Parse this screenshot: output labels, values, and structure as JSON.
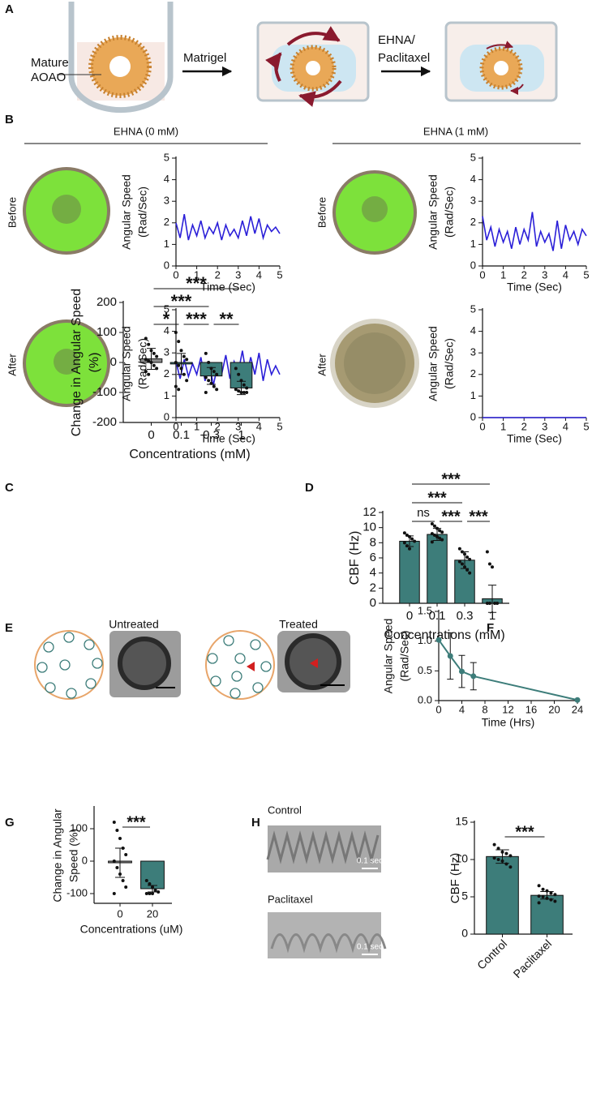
{
  "panel_labels": [
    "A",
    "B",
    "C",
    "D",
    "E",
    "F",
    "G",
    "H"
  ],
  "panel_a": {
    "organoid_label": [
      "Mature",
      "AOAO"
    ],
    "step1": "Matrigel",
    "step2": [
      "EHNA/",
      "Paclitaxel"
    ]
  },
  "panel_b": {
    "headers": [
      "EHNA (0 mM)",
      "EHNA (1 mM)"
    ],
    "row_labels": [
      "Before",
      "After",
      "Before",
      "After"
    ]
  },
  "panel_e": {
    "labels": [
      "Untreated",
      "Treated"
    ]
  },
  "panel_h": {
    "labels": [
      "Control",
      "Paclitaxel"
    ],
    "scale_bars": [
      "0.1 sec",
      "0.1 sec"
    ]
  },
  "chart_data": [
    {
      "type": "line",
      "x": [
        0,
        0.2,
        0.4,
        0.6,
        0.8,
        1,
        1.2,
        1.4,
        1.6,
        1.8,
        2,
        2.2,
        2.4,
        2.6,
        2.8,
        3,
        3.2,
        3.4,
        3.6,
        3.8,
        4,
        4.2,
        4.4,
        4.6,
        4.8,
        5
      ],
      "values": [
        2.0,
        1.3,
        2.4,
        1.2,
        1.9,
        1.4,
        2.1,
        1.3,
        1.8,
        1.5,
        2.0,
        1.2,
        1.9,
        1.4,
        1.7,
        1.3,
        2.1,
        1.4,
        2.3,
        1.5,
        2.2,
        1.3,
        1.9,
        1.6,
        1.8,
        1.5
      ],
      "color": "#2b1fd8",
      "xlim": [
        0,
        5
      ],
      "ylim": [
        0,
        5
      ],
      "xticks": [
        0,
        1,
        2,
        3,
        4,
        5
      ],
      "yticks": [
        0,
        1,
        2,
        3,
        4,
        5
      ],
      "x_label": "Time (Sec)",
      "y_label": [
        "Angular Speed",
        "(Rad/Sec)"
      ]
    },
    {
      "type": "line",
      "x": [
        0,
        0.2,
        0.4,
        0.6,
        0.8,
        1,
        1.2,
        1.4,
        1.6,
        1.8,
        2,
        2.2,
        2.4,
        2.6,
        2.8,
        3,
        3.2,
        3.4,
        3.6,
        3.8,
        4,
        4.2,
        4.4,
        4.6,
        4.8,
        5
      ],
      "values": [
        2.6,
        1.8,
        2.7,
        1.9,
        2.5,
        2.0,
        2.8,
        1.7,
        2.6,
        1.5,
        2.4,
        2.0,
        2.9,
        1.8,
        2.6,
        2.1,
        3.1,
        1.9,
        2.8,
        2.0,
        3.0,
        1.7,
        2.7,
        2.0,
        2.4,
        2.0
      ],
      "color": "#2b1fd8",
      "xlim": [
        0,
        5
      ],
      "ylim": [
        0,
        5
      ],
      "xticks": [
        0,
        1,
        2,
        3,
        4,
        5
      ],
      "yticks": [
        0,
        1,
        2,
        3,
        4,
        5
      ],
      "x_label": "Time (Sec)",
      "y_label": [
        "Angular Speed",
        "(Rad/Sec)"
      ]
    },
    {
      "type": "line",
      "x": [
        0,
        0.2,
        0.4,
        0.6,
        0.8,
        1,
        1.2,
        1.4,
        1.6,
        1.8,
        2,
        2.2,
        2.4,
        2.6,
        2.8,
        3,
        3.2,
        3.4,
        3.6,
        3.8,
        4,
        4.2,
        4.4,
        4.6,
        4.8,
        5
      ],
      "values": [
        2.3,
        1.2,
        1.8,
        0.9,
        1.7,
        1.1,
        1.6,
        0.8,
        1.8,
        1.0,
        1.7,
        1.2,
        2.5,
        0.9,
        1.6,
        1.1,
        1.5,
        0.7,
        2.1,
        0.8,
        1.9,
        1.2,
        1.6,
        1.0,
        1.7,
        1.4
      ],
      "color": "#2b1fd8",
      "xlim": [
        0,
        5
      ],
      "ylim": [
        0,
        5
      ],
      "xticks": [
        0,
        1,
        2,
        3,
        4,
        5
      ],
      "yticks": [
        0,
        1,
        2,
        3,
        4,
        5
      ],
      "x_label": "Time (Sec)",
      "y_label": [
        "Angular Speed",
        "(Rad/Sec)"
      ]
    },
    {
      "type": "line",
      "x": [
        0,
        1,
        2,
        3,
        4,
        5
      ],
      "values": [
        0,
        0,
        0,
        0,
        0,
        0
      ],
      "color": "#2b1fd8",
      "xlim": [
        0,
        5
      ],
      "ylim": [
        0,
        5
      ],
      "xticks": [
        0,
        1,
        2,
        3,
        4,
        5
      ],
      "yticks": [
        0,
        1,
        2,
        3,
        4,
        5
      ],
      "x_label": "Time (Sec)",
      "y_label": [
        "Angular Speed",
        "(Rad/Sec)"
      ]
    },
    {
      "type": "bar",
      "categories": [
        "0",
        "0.1",
        "0.3",
        "1"
      ],
      "values": [
        12,
        -5,
        -45,
        -85
      ],
      "errors": [
        35,
        35,
        28,
        22
      ],
      "colors": [
        "#8c8c8c",
        "#3d7d7a",
        "#3d7d7a",
        "#3d7d7a"
      ],
      "points": [
        [
          80,
          60,
          40,
          30,
          20,
          10,
          5,
          0,
          -10,
          -20,
          -30,
          -40
        ],
        [
          100,
          70,
          40,
          20,
          10,
          0,
          -10,
          -20,
          -40,
          -60,
          -80,
          -90
        ],
        [
          30,
          0,
          -20,
          -30,
          -40,
          -50,
          -60,
          -70,
          -80,
          -90,
          -100
        ],
        [
          -20,
          -40,
          -60,
          -75,
          -85,
          -90,
          -95,
          -100,
          -100,
          -100
        ]
      ],
      "ylim": [
        -200,
        200
      ],
      "yticks": [
        -200,
        -100,
        0,
        100,
        200
      ],
      "x_label": "Concentrations (mM)",
      "y_label": [
        "Change in Angular Speed",
        "(%)"
      ],
      "brackets": [
        {
          "from": 0,
          "to": 1,
          "label": "*"
        },
        {
          "from": 1,
          "to": 2,
          "label": "***"
        },
        {
          "from": 2,
          "to": 3,
          "label": "**"
        },
        {
          "from": 0,
          "to": 2,
          "label": "***"
        },
        {
          "from": 0,
          "to": 3,
          "label": "***"
        }
      ]
    },
    {
      "type": "bar",
      "categories": [
        "0",
        "0.1",
        "0.3",
        "1"
      ],
      "values": [
        8.2,
        9.1,
        5.7,
        0.6
      ],
      "errors": [
        0.7,
        0.8,
        1.1,
        1.8
      ],
      "colors": [
        "#3d7d7a",
        "#3d7d7a",
        "#3d7d7a",
        "#3d7d7a"
      ],
      "points": [
        [
          9.3,
          9,
          8.8,
          8.5,
          8.2,
          8,
          7.6,
          7.2
        ],
        [
          10.5,
          10.2,
          9.9,
          9.6,
          9.4,
          9.2,
          9,
          8.8,
          8.6,
          8.4,
          8.1
        ],
        [
          7.2,
          6.8,
          6.5,
          6.1,
          5.8,
          5.5,
          5.2,
          4.8,
          4.4,
          4.0
        ],
        [
          6.8,
          5.2,
          4.8,
          0,
          0,
          0,
          0
        ]
      ],
      "ylim": [
        0,
        12
      ],
      "yticks": [
        0,
        2,
        4,
        6,
        8,
        10,
        12
      ],
      "x_label": "Concentrations (mM)",
      "y_label": [
        "CBF (Hz)"
      ],
      "brackets": [
        {
          "from": 0,
          "to": 1,
          "label": "ns"
        },
        {
          "from": 1,
          "to": 2,
          "label": "***"
        },
        {
          "from": 2,
          "to": 3,
          "label": "***"
        },
        {
          "from": 0,
          "to": 2,
          "label": "***"
        },
        {
          "from": 0,
          "to": 3,
          "label": "***"
        }
      ]
    },
    {
      "type": "line",
      "x": [
        0,
        2,
        4,
        6,
        24
      ],
      "values": [
        1.02,
        0.75,
        0.49,
        0.41,
        0.01
      ],
      "errors": [
        null,
        0.39,
        0.27,
        0.23,
        null
      ],
      "color": "#3d7d7a",
      "xlim": [
        0,
        24
      ],
      "ylim": [
        0,
        1.5
      ],
      "xticks": [
        0,
        4,
        8,
        12,
        16,
        20,
        24
      ],
      "yticks": [
        {
          "value": 0,
          "label": "0.0"
        },
        {
          "value": 0.5,
          "label": "0.5"
        },
        {
          "value": 1,
          "label": "1.0"
        },
        {
          "value": 1.5,
          "label": "1.5"
        }
      ],
      "x_label": "Time (Hrs)",
      "y_label": [
        "Angular Speed",
        "(Rad/Sec)"
      ],
      "markers": true
    },
    {
      "type": "bar",
      "categories": [
        "0",
        "20"
      ],
      "values": [
        -5,
        -85
      ],
      "errors": [
        45,
        10
      ],
      "colors": [
        "#8c8c8c",
        "#3d7d7a"
      ],
      "points": [
        [
          120,
          95,
          70,
          40,
          20,
          0,
          -20,
          -40,
          -60,
          -80,
          -100
        ],
        [
          -60,
          -70,
          -80,
          -90,
          -95,
          -100,
          -100,
          -100
        ]
      ],
      "ylim": [
        -130,
        165
      ],
      "yticks": [
        -100,
        0,
        100
      ],
      "x_label": "Concentrations (uM)",
      "y_label": [
        "Change in Angular",
        "Speed (%)"
      ],
      "brackets": [
        {
          "from": 0,
          "to": 1,
          "label": "***"
        }
      ]
    },
    {
      "type": "bar",
      "categories": [
        "Control",
        "Paclitaxel"
      ],
      "values": [
        10.4,
        5.2
      ],
      "errors": [
        0.9,
        0.5
      ],
      "colors": [
        "#3d7d7a",
        "#3d7d7a"
      ],
      "points": [
        [
          12,
          11.5,
          11,
          10.8,
          10.5,
          10.2,
          10,
          9.8,
          9.4,
          9
        ],
        [
          6.5,
          6,
          5.8,
          5.5,
          5.3,
          5.1,
          5,
          4.8,
          4.6,
          4.4,
          4.2
        ]
      ],
      "ylim": [
        0,
        15
      ],
      "yticks": [
        0,
        5,
        10,
        15
      ],
      "y_label": [
        "CBF (Hz)"
      ],
      "rotate_categories": true,
      "brackets": [
        {
          "from": 0,
          "to": 1,
          "label": "***"
        }
      ]
    }
  ]
}
